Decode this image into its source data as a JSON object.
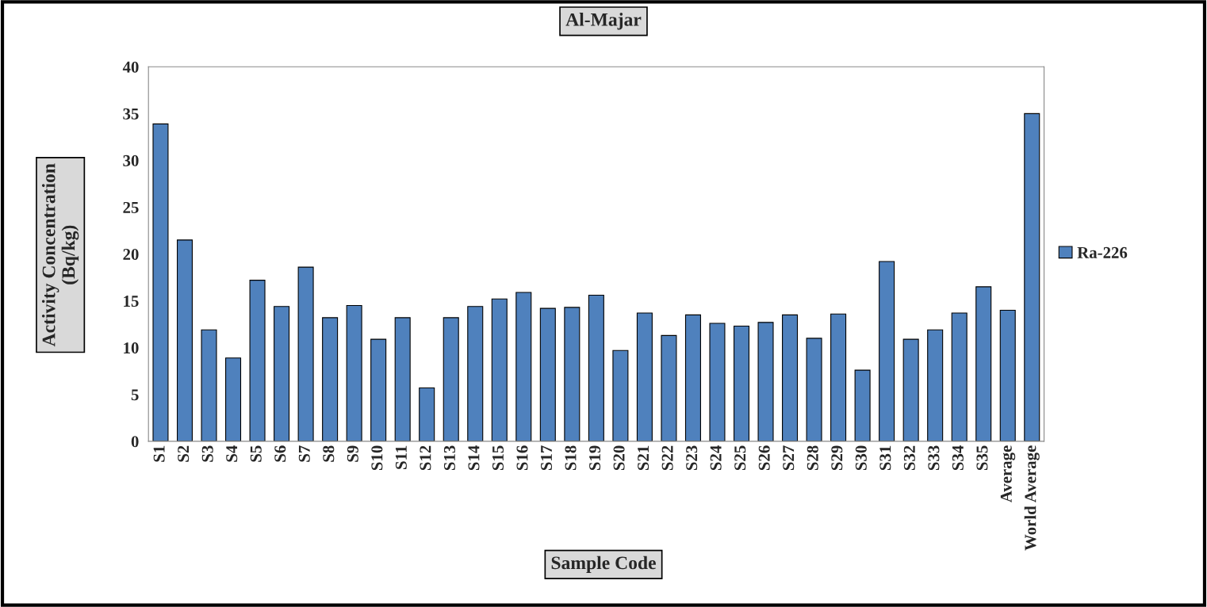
{
  "chart_data": {
    "type": "bar",
    "title": "Al-Majar",
    "xlabel": "Sample Code",
    "ylabel": "Activity Concentration\n(Bq/kg)",
    "categories": [
      "S1",
      "S2",
      "S3",
      "S4",
      "S5",
      "S6",
      "S7",
      "S8",
      "S9",
      "S10",
      "S11",
      "S12",
      "S13",
      "S14",
      "S15",
      "S16",
      "S17",
      "S18",
      "S19",
      "S20",
      "S21",
      "S22",
      "S23",
      "S24",
      "S25",
      "S26",
      "S27",
      "S28",
      "S29",
      "S30",
      "S31",
      "S32",
      "S33",
      "S34",
      "S35",
      "Average",
      "World Average"
    ],
    "series": [
      {
        "name": "Ra-226",
        "color": "#4f81bd",
        "values": [
          33.9,
          21.5,
          11.9,
          8.9,
          17.2,
          14.4,
          18.6,
          13.2,
          14.5,
          10.9,
          13.2,
          5.7,
          13.2,
          14.4,
          15.2,
          15.9,
          14.2,
          14.3,
          15.6,
          9.7,
          13.7,
          11.3,
          13.5,
          12.6,
          12.3,
          12.7,
          13.5,
          11.0,
          13.6,
          7.6,
          19.2,
          10.9,
          11.9,
          13.7,
          16.5,
          14.0,
          35.0
        ]
      }
    ],
    "ylim": [
      0,
      40
    ],
    "yticks": [
      0,
      5,
      10,
      15,
      20,
      25,
      30,
      35,
      40
    ],
    "grid": false,
    "legend": "right"
  }
}
